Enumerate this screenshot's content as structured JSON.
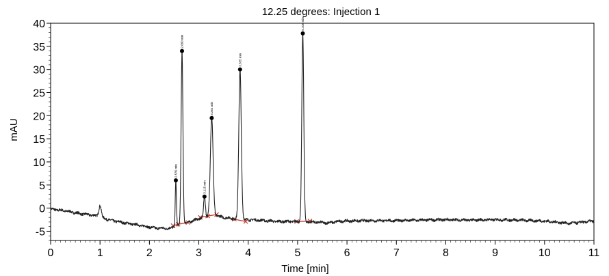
{
  "chart_data": {
    "type": "line",
    "title": "12.25 degrees: Injection 1",
    "xlabel": "Time [min]",
    "ylabel": "mAU",
    "xlim": [
      0,
      11
    ],
    "ylim": [
      -7,
      40
    ],
    "x_ticks": [
      0,
      1,
      2,
      3,
      4,
      5,
      6,
      7,
      8,
      9,
      10,
      11
    ],
    "y_ticks": [
      -5,
      0,
      5,
      10,
      15,
      20,
      25,
      30,
      35,
      40
    ],
    "grid": false,
    "line_color": "#222222",
    "integration_color": "#c0392b",
    "series": [
      {
        "baseline": [
          [
            0.0,
            -0.2
          ],
          [
            0.3,
            -0.6
          ],
          [
            0.6,
            -1.2
          ],
          [
            0.9,
            -1.6
          ],
          [
            1.2,
            -2.6
          ],
          [
            1.5,
            -3.2
          ],
          [
            1.8,
            -3.7
          ],
          [
            2.1,
            -4.3
          ],
          [
            2.4,
            -4.4
          ],
          [
            2.6,
            -3.7
          ],
          [
            3.0,
            -2.3
          ],
          [
            3.3,
            -1.5
          ],
          [
            3.5,
            -2.0
          ],
          [
            3.8,
            -2.4
          ],
          [
            4.2,
            -2.6
          ],
          [
            4.6,
            -2.9
          ],
          [
            5.0,
            -2.9
          ],
          [
            5.3,
            -3.0
          ],
          [
            5.6,
            -3.2
          ],
          [
            5.9,
            -2.8
          ],
          [
            6.5,
            -2.7
          ],
          [
            7.0,
            -2.7
          ],
          [
            7.5,
            -2.6
          ],
          [
            8.0,
            -2.5
          ],
          [
            8.5,
            -2.6
          ],
          [
            9.0,
            -2.5
          ],
          [
            9.5,
            -2.6
          ],
          [
            10.0,
            -2.8
          ],
          [
            10.5,
            -3.3
          ],
          [
            11.0,
            -2.8
          ]
        ],
        "bumps": [
          {
            "t": 1.0,
            "height": 2.5,
            "width": 0.025
          }
        ],
        "peaks": [
          {
            "t": 2.535,
            "apex": 6.0,
            "width": 0.012,
            "label": "2.535 min"
          },
          {
            "t": 2.66,
            "apex": 34.0,
            "width": 0.018,
            "label": "2.660 min"
          },
          {
            "t": 3.115,
            "apex": 2.5,
            "width": 0.018,
            "label": "3.115 min"
          },
          {
            "t": 3.261,
            "apex": 19.5,
            "width": 0.028,
            "label": "3.261 min"
          },
          {
            "t": 3.835,
            "apex": 30.0,
            "width": 0.025,
            "label": "3.835 min"
          },
          {
            "t": 5.105,
            "apex": 37.8,
            "width": 0.02,
            "label": "5.105 min"
          }
        ]
      }
    ],
    "integration_segments": [
      [
        [
          2.48,
          -3.8
        ],
        [
          2.58,
          -3.5
        ],
        [
          2.78,
          -3.1
        ]
      ],
      [
        [
          3.03,
          -2.0
        ],
        [
          3.18,
          -1.7
        ],
        [
          3.36,
          -1.4
        ]
      ],
      [
        [
          3.72,
          -2.4
        ],
        [
          3.95,
          -2.9
        ]
      ],
      [
        [
          4.98,
          -2.9
        ],
        [
          5.25,
          -2.8
        ]
      ]
    ]
  }
}
